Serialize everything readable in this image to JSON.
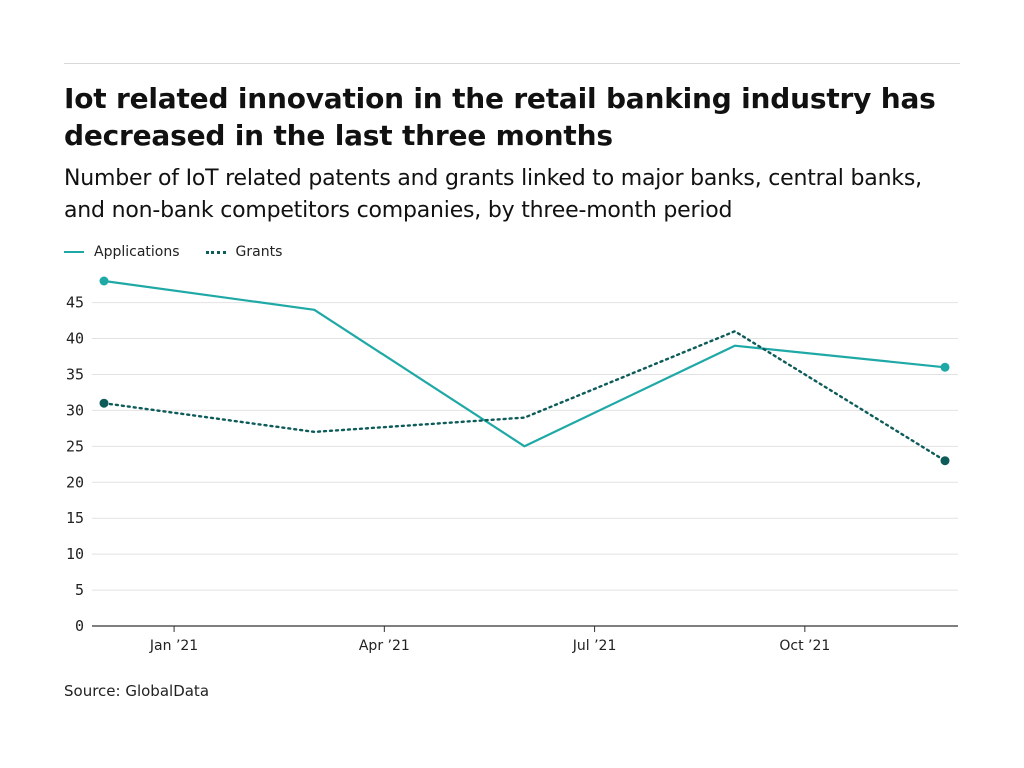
{
  "title": "Iot related innovation in the retail banking industry has decreased in the last three months",
  "subtitle": "Number of IoT related patents and grants linked to major banks, central banks, and non-bank competitors companies, by three-month period",
  "source": "Source: GlobalData",
  "colors": {
    "applications": "#1fa9a6",
    "grants": "#0e5c5a",
    "grid": "#e2e2e2",
    "axis": "#333333"
  },
  "chart_data": {
    "type": "line",
    "title": "Iot related innovation in the retail banking industry has decreased in the last three months",
    "subtitle": "Number of IoT related patents and grants linked to major banks, central banks, and non-bank competitors companies, by three-month period",
    "xlabel": "",
    "ylabel": "",
    "x": [
      "2020-12",
      "2021-03",
      "2021-06",
      "2021-09",
      "2021-12"
    ],
    "x_ticks": [
      "Jan ’21",
      "Apr ’21",
      "Jul ’21",
      "Oct ’21"
    ],
    "x_tick_positions": [
      "2021-01",
      "2021-04",
      "2021-07",
      "2021-10"
    ],
    "ylim": [
      0,
      48
    ],
    "y_ticks": [
      0,
      5,
      10,
      15,
      20,
      25,
      30,
      35,
      40,
      45
    ],
    "grid": true,
    "legend_position": "top-left",
    "series": [
      {
        "name": "Applications",
        "style": "solid",
        "values": [
          48,
          44,
          25,
          39,
          36
        ]
      },
      {
        "name": "Grants",
        "style": "dotted",
        "values": [
          31,
          27,
          29,
          41,
          23
        ]
      }
    ]
  }
}
